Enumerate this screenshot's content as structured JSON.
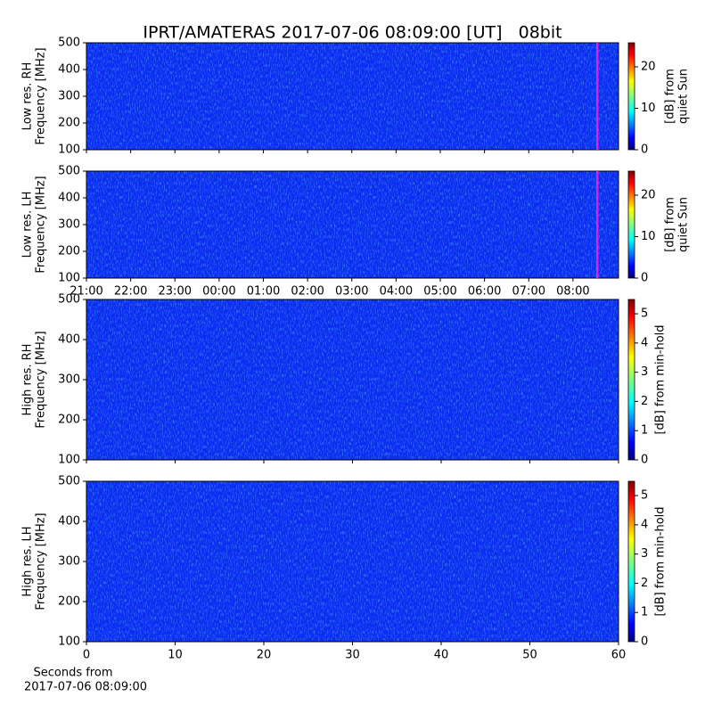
{
  "chart_data": [
    {
      "type": "heatmap",
      "title": "IPRT/AMATERAS 2017-07-06 08:09:00 [UT]   08bit",
      "ylabel": [
        "Low res. RH",
        "Frequency [MHz]"
      ],
      "ylim": [
        100,
        500
      ],
      "yticks": [
        100,
        200,
        300,
        400,
        500
      ],
      "xlim": [
        21,
        33.03
      ],
      "xticks": [
        21,
        22,
        23,
        24,
        25,
        26,
        27,
        28,
        29,
        30,
        31,
        32
      ],
      "xticklabels": false,
      "marker_x": 32.55,
      "marker_color": "#e020e0",
      "colormap": "jet",
      "clim": [
        0,
        25.8
      ],
      "cticks": [
        0,
        10,
        20
      ],
      "clabel": [
        "[dB] from",
        "quiet Sun"
      ]
    },
    {
      "type": "heatmap",
      "ylabel": [
        "Low res. LH",
        "Frequency [MHz]"
      ],
      "ylim": [
        100,
        500
      ],
      "yticks": [
        100,
        200,
        300,
        400,
        500
      ],
      "xlim": [
        21,
        33.03
      ],
      "xticks": [
        {
          "value": 21,
          "label": "21:00"
        },
        {
          "value": 22,
          "label": "22:00"
        },
        {
          "value": 23,
          "label": "23:00"
        },
        {
          "value": 24,
          "label": "00:00"
        },
        {
          "value": 25,
          "label": "01:00"
        },
        {
          "value": 26,
          "label": "02:00"
        },
        {
          "value": 27,
          "label": "03:00"
        },
        {
          "value": 28,
          "label": "04:00"
        },
        {
          "value": 29,
          "label": "05:00"
        },
        {
          "value": 30,
          "label": "06:00"
        },
        {
          "value": 31,
          "label": "07:00"
        },
        {
          "value": 32,
          "label": "08:00"
        }
      ],
      "xticklabels": true,
      "marker_x": 32.55,
      "marker_color": "#e020e0",
      "colormap": "jet",
      "clim": [
        0,
        25.8
      ],
      "cticks": [
        0,
        10,
        20
      ],
      "clabel": [
        "[dB] from",
        "quiet Sun"
      ]
    },
    {
      "type": "heatmap",
      "ylabel": [
        "High res. RH",
        "Frequency [MHz]"
      ],
      "ylim": [
        100,
        500
      ],
      "yticks": [
        100,
        200,
        300,
        400,
        500
      ],
      "xlim": [
        0,
        60
      ],
      "xticks": [
        0,
        10,
        20,
        30,
        40,
        50,
        60
      ],
      "xticklabels": false,
      "colormap": "jet",
      "clim": [
        0,
        5.49
      ],
      "cticks": [
        0,
        1,
        2,
        3,
        4,
        5
      ],
      "clabel": [
        "[dB] from min-hold"
      ]
    },
    {
      "type": "heatmap",
      "ylabel": [
        "High res. LH",
        "Frequency [MHz]"
      ],
      "ylim": [
        100,
        500
      ],
      "yticks": [
        100,
        200,
        300,
        400,
        500
      ],
      "xlim": [
        0,
        60
      ],
      "xticks": [
        0,
        10,
        20,
        30,
        40,
        50,
        60
      ],
      "xticklabels": true,
      "xlabel": [
        "Seconds from",
        "2017-07-06 08:09:00"
      ],
      "colormap": "jet",
      "clim": [
        0,
        5.49
      ],
      "cticks": [
        0,
        1,
        2,
        3,
        4,
        5
      ],
      "clabel": [
        "[dB] from min-hold"
      ]
    }
  ]
}
